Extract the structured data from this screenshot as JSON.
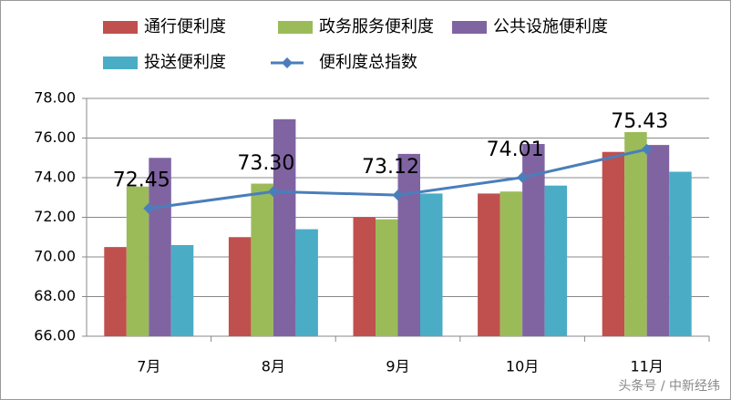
{
  "chart_data": {
    "type": "bar",
    "categories": [
      "7月",
      "8月",
      "9月",
      "10月",
      "11月"
    ],
    "series": [
      {
        "name": "通行便利度",
        "color": "#c0504d",
        "values": [
          70.5,
          71.0,
          72.0,
          73.2,
          75.3
        ]
      },
      {
        "name": "政务服务便利度",
        "color": "#9bbb59",
        "values": [
          73.55,
          73.7,
          71.9,
          73.3,
          76.3
        ]
      },
      {
        "name": "公共设施便利度",
        "color": "#8064a2",
        "values": [
          75.0,
          76.95,
          75.2,
          75.7,
          75.65
        ]
      },
      {
        "name": "投送便利度",
        "color": "#4bacc6",
        "values": [
          70.6,
          71.4,
          73.2,
          73.6,
          74.3
        ]
      },
      {
        "name": "便利度总指数",
        "color": "#4a7ebb",
        "type": "line",
        "values": [
          72.45,
          73.3,
          73.12,
          74.01,
          75.43
        ],
        "value_labels": [
          "72.45",
          "73.30",
          "73.12",
          "74.01",
          "75.43"
        ]
      }
    ],
    "ylim": [
      66,
      78
    ],
    "yticks": [
      {
        "value": 66,
        "label": "66.00"
      },
      {
        "value": 68,
        "label": "68.00"
      },
      {
        "value": 70,
        "label": "70.00"
      },
      {
        "value": 72,
        "label": "72.00"
      },
      {
        "value": 74,
        "label": "74.00"
      },
      {
        "value": 76,
        "label": "76.00"
      },
      {
        "value": 78,
        "label": "78.00"
      }
    ],
    "grid": true,
    "legend": "top",
    "watermark": "头条号 / 中新经纬"
  }
}
